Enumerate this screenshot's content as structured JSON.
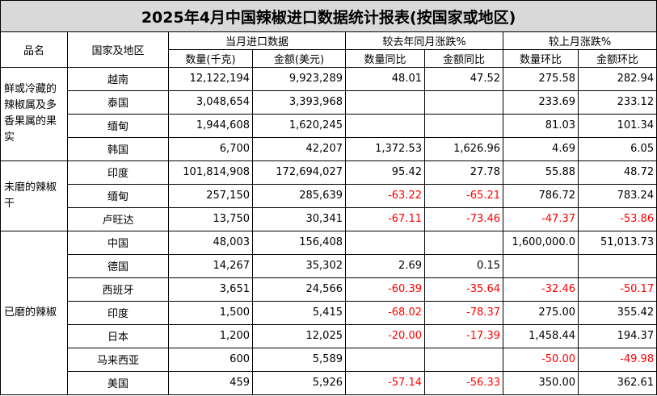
{
  "title": "2025年4月中国辣椒进口数据统计报表(按国家或地区)",
  "headers": {
    "category": "品名",
    "country": "国家及地区",
    "current": "当月进口数据",
    "yoy": "较去年同月涨跌%",
    "mom": "较上月涨跌%",
    "qty": "数量(千克)",
    "amount": "金额(美元)",
    "qty_yoy": "数量同比",
    "amount_yoy": "金额同比",
    "qty_mom": "数量环比",
    "amount_mom": "金额环比"
  },
  "groups": [
    {
      "category": "鲜或冷藏的辣椒属及多香果属的果实",
      "rows": [
        {
          "country": "越南",
          "qty": "12,122,194",
          "amount": "9,923,289",
          "qty_yoy": "48.01",
          "amount_yoy": "47.52",
          "qty_mom": "275.58",
          "amount_mom": "282.94"
        },
        {
          "country": "泰国",
          "qty": "3,048,654",
          "amount": "3,393,968",
          "qty_yoy": "",
          "amount_yoy": "",
          "qty_mom": "233.69",
          "amount_mom": "233.12"
        },
        {
          "country": "缅甸",
          "qty": "1,944,608",
          "amount": "1,620,245",
          "qty_yoy": "",
          "amount_yoy": "",
          "qty_mom": "81.03",
          "amount_mom": "101.34"
        },
        {
          "country": "韩国",
          "qty": "6,700",
          "amount": "42,207",
          "qty_yoy": "1,372.53",
          "amount_yoy": "1,626.96",
          "qty_mom": "4.69",
          "amount_mom": "6.05"
        }
      ]
    },
    {
      "category": "未磨的辣椒干",
      "rows": [
        {
          "country": "印度",
          "qty": "101,814,908",
          "amount": "172,694,027",
          "qty_yoy": "95.42",
          "amount_yoy": "27.78",
          "qty_mom": "55.88",
          "amount_mom": "48.72"
        },
        {
          "country": "缅甸",
          "qty": "257,150",
          "amount": "285,639",
          "qty_yoy": "-63.22",
          "amount_yoy": "-65.21",
          "qty_mom": "786.72",
          "amount_mom": "783.24"
        },
        {
          "country": "卢旺达",
          "qty": "13,750",
          "amount": "30,341",
          "qty_yoy": "-67.11",
          "amount_yoy": "-73.46",
          "qty_mom": "-47.37",
          "amount_mom": "-53.86"
        }
      ]
    },
    {
      "category": "已磨的辣椒",
      "rows": [
        {
          "country": "中国",
          "qty": "48,003",
          "amount": "156,408",
          "qty_yoy": "",
          "amount_yoy": "",
          "qty_mom": "1,600,000.0",
          "amount_mom": "51,013.73"
        },
        {
          "country": "德国",
          "qty": "14,267",
          "amount": "35,302",
          "qty_yoy": "2.69",
          "amount_yoy": "0.15",
          "qty_mom": "",
          "amount_mom": ""
        },
        {
          "country": "西班牙",
          "qty": "3,651",
          "amount": "24,566",
          "qty_yoy": "-60.39",
          "amount_yoy": "-35.64",
          "qty_mom": "-32.46",
          "amount_mom": "-50.17"
        },
        {
          "country": "印度",
          "qty": "1,500",
          "amount": "5,415",
          "qty_yoy": "-68.02",
          "amount_yoy": "-78.37",
          "qty_mom": "275.00",
          "amount_mom": "355.42"
        },
        {
          "country": "日本",
          "qty": "1,200",
          "amount": "12,025",
          "qty_yoy": "-20.00",
          "amount_yoy": "-17.39",
          "qty_mom": "1,458.44",
          "amount_mom": "194.37"
        },
        {
          "country": "马来西亚",
          "qty": "600",
          "amount": "5,589",
          "qty_yoy": "",
          "amount_yoy": "",
          "qty_mom": "-50.00",
          "amount_mom": "-49.98"
        },
        {
          "country": "美国",
          "qty": "459",
          "amount": "5,926",
          "qty_yoy": "-57.14",
          "amount_yoy": "-56.33",
          "qty_mom": "350.00",
          "amount_mom": "362.61"
        }
      ]
    }
  ],
  "colors": {
    "negative": "#ff0000",
    "title_bg": "#d9d9d9",
    "border": "#000000"
  }
}
